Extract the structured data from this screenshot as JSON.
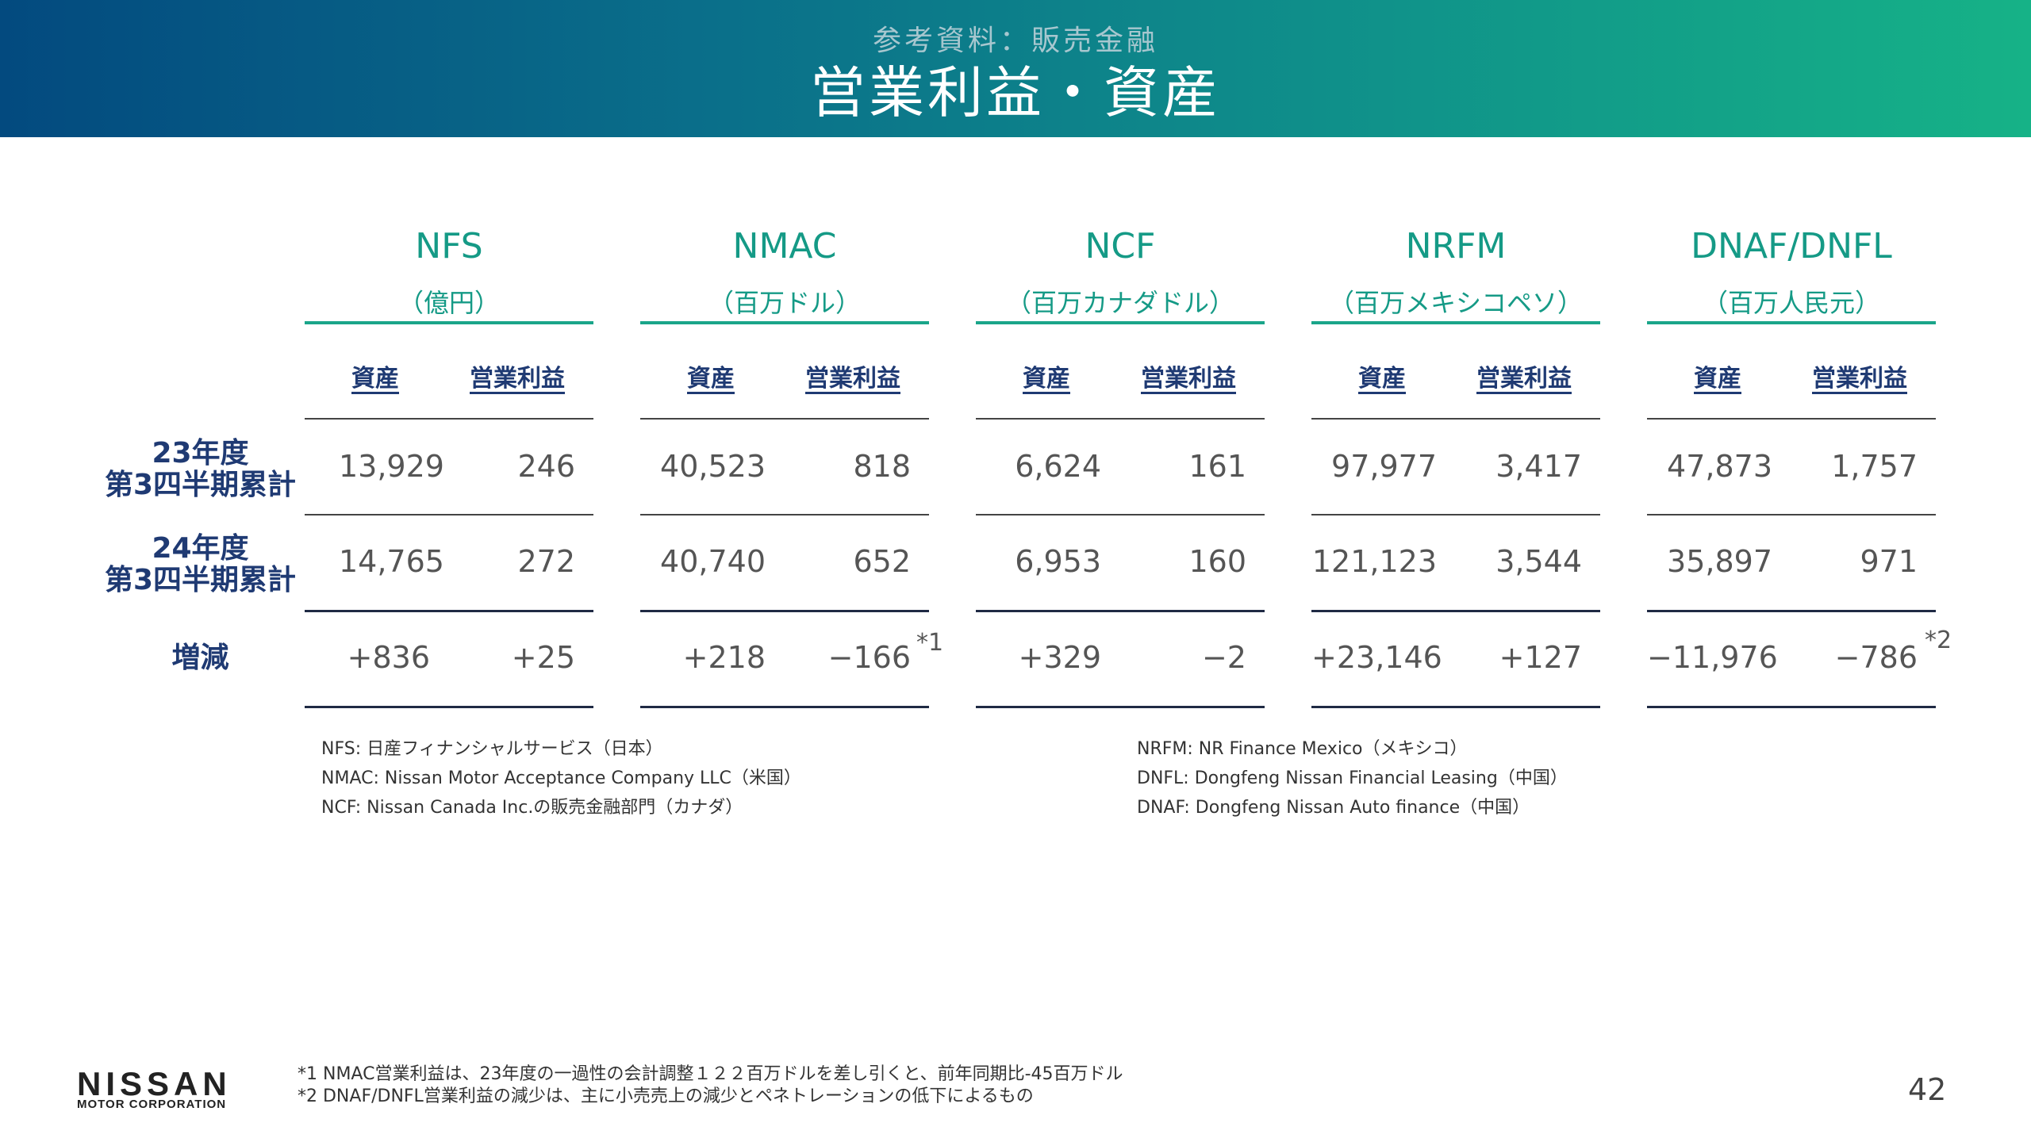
{
  "header": {
    "subtitle": "参考資料：販売金融",
    "title": "営業利益・資産"
  },
  "table": {
    "col_asset": "資産",
    "col_profit": "営業利益",
    "groups": [
      {
        "name": "NFS",
        "unit": "（億円）",
        "fy23": {
          "asset": "13,929",
          "profit": "246"
        },
        "fy24": {
          "asset": "14,765",
          "profit": "272"
        },
        "change": {
          "asset": "+836",
          "profit": "+25"
        }
      },
      {
        "name": "NMAC",
        "unit": "（百万ドル）",
        "fy23": {
          "asset": "40,523",
          "profit": "818"
        },
        "fy24": {
          "asset": "40,740",
          "profit": "652"
        },
        "change": {
          "asset": "+218",
          "profit": "−166"
        }
      },
      {
        "name": "NCF",
        "unit": "（百万カナダドル）",
        "fy23": {
          "asset": "6,624",
          "profit": "161"
        },
        "fy24": {
          "asset": "6,953",
          "profit": "160"
        },
        "change": {
          "asset": "+329",
          "profit": "−2"
        }
      },
      {
        "name": "NRFM",
        "unit": "（百万メキシコペソ）",
        "fy23": {
          "asset": "97,977",
          "profit": "3,417"
        },
        "fy24": {
          "asset": "121,123",
          "profit": "3,544"
        },
        "change": {
          "asset": "+23,146",
          "profit": "+127"
        }
      },
      {
        "name": "DNAF/DNFL",
        "unit": "（百万人民元）",
        "fy23": {
          "asset": "47,873",
          "profit": "1,757"
        },
        "fy24": {
          "asset": "35,897",
          "profit": "971"
        },
        "change": {
          "asset": "−11,976",
          "profit": "−786"
        }
      }
    ],
    "rows": {
      "fy23_line1": "23年度",
      "fy23_line2": "第3四半期累計",
      "fy24_line1": "24年度",
      "fy24_line2": "第3四半期累計",
      "change": "増減"
    },
    "note_marks": {
      "nmac": "*1",
      "dnaf": "*2"
    }
  },
  "definitions": {
    "left": [
      "NFS: 日産フィナンシャルサービス（日本）",
      "NMAC: Nissan Motor Acceptance Company LLC（米国）",
      "NCF: Nissan Canada Inc.の販売金融部門（カナダ）"
    ],
    "right": [
      "NRFM: NR Finance Mexico（メキシコ）",
      "DNFL: Dongfeng Nissan Financial Leasing（中国）",
      "DNAF: Dongfeng Nissan Auto finance（中国）"
    ]
  },
  "footnotes": [
    "*1 NMAC営業利益は、23年度の一過性の会計調整１２２百万ドルを差し引くと、前年同期比-45百万ドル",
    "*2 DNAF/DNFL営業利益の減少は、主に小売売上の減少とペネトレーションの低下によるもの"
  ],
  "logo": {
    "main": "NISSAN",
    "sub": "MOTOR CORPORATION"
  },
  "page_number": "42"
}
